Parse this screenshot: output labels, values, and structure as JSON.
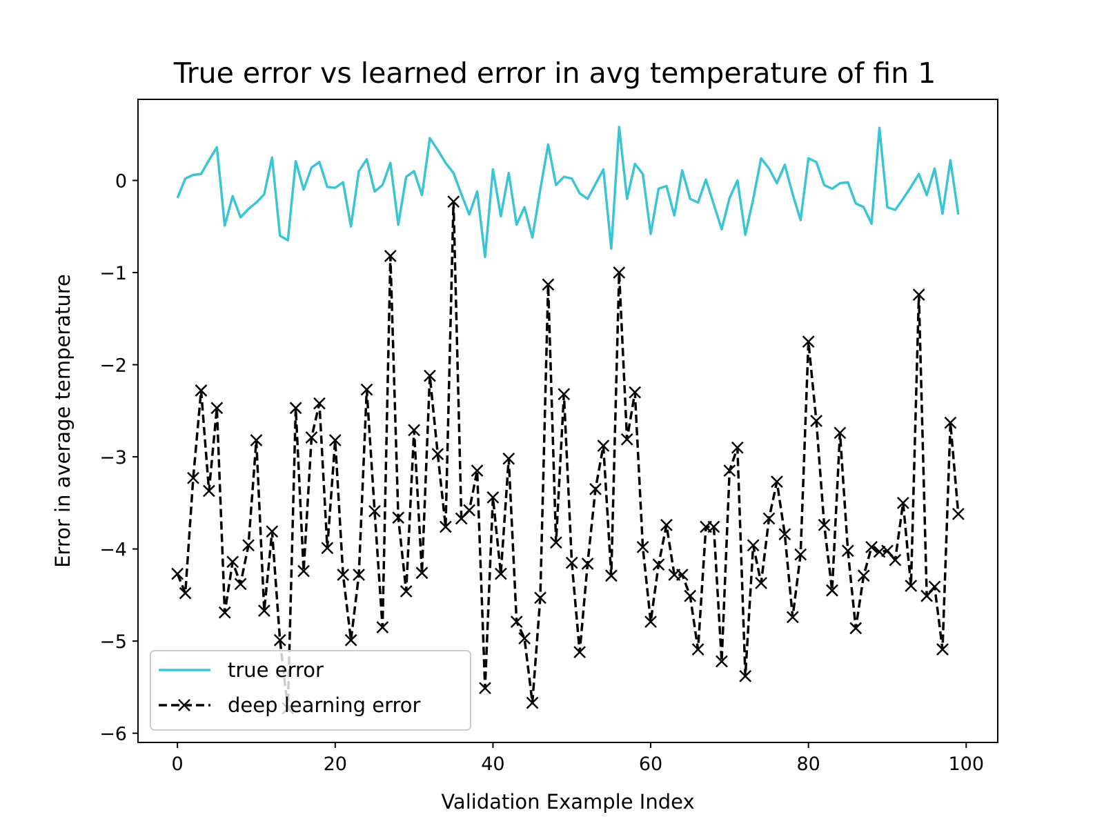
{
  "chart_data": {
    "type": "line",
    "title": "True error vs learned error in avg temperature of fin 1",
    "xlabel": "Validation Example Index",
    "ylabel": "Error in average temperature",
    "xlim": [
      -5,
      104
    ],
    "ylim": [
      -6.1,
      0.88
    ],
    "xticks": [
      0,
      20,
      40,
      60,
      80,
      100
    ],
    "yticks": [
      0,
      -1,
      -2,
      -3,
      -4,
      -5,
      -6
    ],
    "xtick_labels": [
      "0",
      "20",
      "40",
      "60",
      "80",
      "100"
    ],
    "ytick_labels": [
      "0",
      "−1",
      "−2",
      "−3",
      "−4",
      "−5",
      "−6"
    ],
    "grid": false,
    "legend_position": "lower-left",
    "series": [
      {
        "name": "true error",
        "color": "#3bc4d3",
        "style": "solid",
        "marker": "none",
        "x": [
          0,
          1,
          2,
          3,
          4,
          5,
          6,
          7,
          8,
          9,
          10,
          11,
          12,
          13,
          14,
          15,
          16,
          17,
          18,
          19,
          20,
          21,
          22,
          23,
          24,
          25,
          26,
          27,
          28,
          29,
          30,
          31,
          32,
          33,
          34,
          35,
          36,
          37,
          38,
          39,
          40,
          41,
          42,
          43,
          44,
          45,
          46,
          47,
          48,
          49,
          50,
          51,
          52,
          53,
          54,
          55,
          56,
          57,
          58,
          59,
          60,
          61,
          62,
          63,
          64,
          65,
          66,
          67,
          68,
          69,
          70,
          71,
          72,
          73,
          74,
          75,
          76,
          77,
          78,
          79,
          80,
          81,
          82,
          83,
          84,
          85,
          86,
          87,
          88,
          89,
          90,
          91,
          92,
          93,
          94,
          95,
          96,
          97,
          98,
          99
        ],
        "values": [
          -0.19,
          0.02,
          0.06,
          0.07,
          0.22,
          0.36,
          -0.49,
          -0.17,
          -0.4,
          -0.31,
          -0.24,
          -0.15,
          0.25,
          -0.6,
          -0.65,
          0.21,
          -0.1,
          0.14,
          0.2,
          -0.07,
          -0.08,
          -0.02,
          -0.5,
          0.1,
          0.23,
          -0.12,
          -0.05,
          0.19,
          -0.48,
          0.04,
          0.1,
          -0.16,
          0.46,
          0.33,
          0.19,
          0.08,
          -0.15,
          -0.37,
          -0.12,
          -0.83,
          0.12,
          -0.39,
          0.08,
          -0.48,
          -0.29,
          -0.62,
          -0.1,
          0.39,
          -0.05,
          0.04,
          0.02,
          -0.14,
          -0.2,
          -0.04,
          0.12,
          -0.74,
          0.58,
          -0.2,
          0.18,
          0.07,
          -0.58,
          -0.09,
          -0.06,
          -0.38,
          0.11,
          -0.2,
          -0.24,
          0.01,
          -0.26,
          -0.53,
          -0.19,
          0.0,
          -0.59,
          -0.2,
          0.24,
          0.13,
          -0.03,
          0.17,
          -0.15,
          -0.43,
          0.24,
          0.2,
          -0.05,
          -0.09,
          -0.03,
          -0.02,
          -0.25,
          -0.29,
          -0.47,
          0.57,
          -0.29,
          -0.32,
          -0.2,
          -0.07,
          0.07,
          -0.16,
          0.13,
          -0.36,
          0.22,
          -0.37
        ]
      },
      {
        "name": "deep learning error",
        "color": "#000000",
        "style": "dashed",
        "marker": "x",
        "x": [
          0,
          1,
          2,
          3,
          4,
          5,
          6,
          7,
          8,
          9,
          10,
          11,
          12,
          13,
          14,
          15,
          16,
          17,
          18,
          19,
          20,
          21,
          22,
          23,
          24,
          25,
          26,
          27,
          28,
          29,
          30,
          31,
          32,
          33,
          34,
          35,
          36,
          37,
          38,
          39,
          40,
          41,
          42,
          43,
          44,
          45,
          46,
          47,
          48,
          49,
          50,
          51,
          52,
          53,
          54,
          55,
          56,
          57,
          58,
          59,
          60,
          61,
          62,
          63,
          64,
          65,
          66,
          67,
          68,
          69,
          70,
          71,
          72,
          73,
          74,
          75,
          76,
          77,
          78,
          79,
          80,
          81,
          82,
          83,
          84,
          85,
          86,
          87,
          88,
          89,
          90,
          91,
          92,
          93,
          94,
          95,
          96,
          97,
          98,
          99
        ],
        "values": [
          -4.27,
          -4.48,
          -3.23,
          -2.28,
          -3.37,
          -2.47,
          -4.69,
          -4.14,
          -4.38,
          -3.96,
          -2.82,
          -4.67,
          -3.81,
          -4.99,
          -5.73,
          -2.47,
          -4.24,
          -2.79,
          -2.42,
          -3.99,
          -2.82,
          -4.28,
          -4.99,
          -4.28,
          -2.27,
          -3.59,
          -4.85,
          -0.82,
          -3.66,
          -4.46,
          -2.71,
          -4.26,
          -2.12,
          -2.97,
          -3.76,
          -0.23,
          -3.67,
          -3.58,
          -3.15,
          -5.51,
          -3.44,
          -4.27,
          -3.02,
          -4.79,
          -4.97,
          -5.67,
          -4.53,
          -1.13,
          -3.93,
          -2.32,
          -4.15,
          -5.12,
          -4.16,
          -3.35,
          -2.88,
          -4.29,
          -1.0,
          -2.81,
          -2.3,
          -3.98,
          -4.79,
          -4.17,
          -3.74,
          -4.28,
          -4.28,
          -4.51,
          -5.09,
          -3.76,
          -3.76,
          -5.22,
          -3.15,
          -2.9,
          -5.38,
          -3.96,
          -4.37,
          -3.67,
          -3.27,
          -3.84,
          -4.74,
          -4.06,
          -1.75,
          -2.61,
          -3.74,
          -4.45,
          -2.74,
          -4.02,
          -4.86,
          -4.29,
          -3.98,
          -4.03,
          -4.02,
          -4.12,
          -3.5,
          -4.4,
          -1.24,
          -4.51,
          -4.41,
          -5.09,
          -2.63,
          -3.62
        ]
      }
    ]
  }
}
